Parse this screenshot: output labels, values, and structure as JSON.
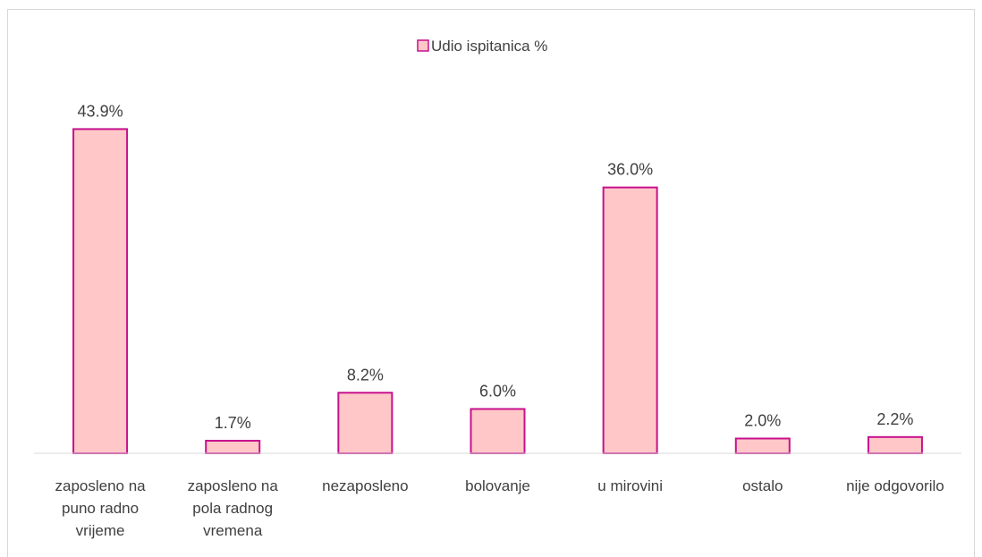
{
  "chart_data": {
    "type": "bar",
    "categories": [
      "zaposleno na puno radno vrijeme",
      "zaposleno na pola radnog vremena",
      "nezaposleno",
      "bolovanje",
      "u mirovini",
      "ostalo",
      "nije odgovorilo"
    ],
    "category_lines": [
      [
        "zaposleno na",
        "puno radno",
        "vrijeme"
      ],
      [
        "zaposleno na",
        "pola radnog",
        "vremena"
      ],
      [
        "nezaposleno"
      ],
      [
        "bolovanje"
      ],
      [
        "u mirovini"
      ],
      [
        "ostalo"
      ],
      [
        "nije odgovorilo"
      ]
    ],
    "series": [
      {
        "name": "Udio ispitanica %",
        "values": [
          43.9,
          1.7,
          8.2,
          6.0,
          36.0,
          2.0,
          2.2
        ],
        "labels": [
          "43.9%",
          "1.7%",
          "8.2%",
          "6.0%",
          "36.0%",
          "2.0%",
          "2.2%"
        ]
      }
    ],
    "title": "",
    "xlabel": "",
    "ylabel": "",
    "ylim": [
      0,
      50
    ],
    "grid": false,
    "legend": "top-center",
    "colors": {
      "bar_fill": "#ffc7c7",
      "bar_stroke": "#c7118d",
      "text": "#404040",
      "axis": "#d9d9d9"
    }
  }
}
